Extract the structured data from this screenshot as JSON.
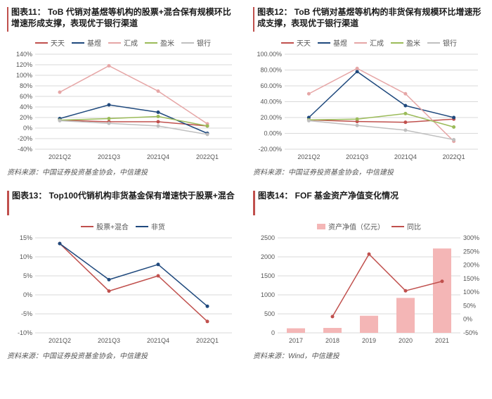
{
  "common": {
    "categories4": [
      "2021Q2",
      "2021Q3",
      "2021Q4",
      "2022Q1"
    ],
    "years5": [
      "2017",
      "2018",
      "2019",
      "2020",
      "2021"
    ],
    "series_colors": {
      "tiantian": "#c0504d",
      "jiyu": "#1f497d",
      "huicheng": "#e6a6a6",
      "yingmi": "#9bbb59",
      "yinhang": "#bfbfbf",
      "stockmix": "#c0504d",
      "nonmoney": "#1f497d",
      "nav_bar": "#f4b6b6",
      "yoy_line": "#c0504d"
    },
    "source1": "资料来源：中国证券投资基金协会，中信建投",
    "source2": "资料来源：Wind，中信建投",
    "legend_names": {
      "tiantian": "天天",
      "jiyu": "基煜",
      "huicheng": "汇成",
      "yingmi": "盈米",
      "yinhang": "银行",
      "stockmix": "股票+混合",
      "nonmoney": "非货",
      "nav": "资产净值（亿元）",
      "yoy": "同比"
    }
  },
  "chart11": {
    "title": "图表11： ToB 代销对基煜等机构的股票+混合保有规模环比增速形成支撑，表现优于银行渠道",
    "ymin": -40,
    "ymax": 140,
    "ystep": 20,
    "series": {
      "tiantian": [
        15,
        12,
        12,
        4
      ],
      "jiyu": [
        18,
        44,
        30,
        -10
      ],
      "huicheng": [
        68,
        118,
        70,
        8
      ],
      "yingmi": [
        15,
        18,
        22,
        4
      ],
      "yinhang": [
        14,
        9,
        4,
        -12
      ]
    }
  },
  "chart12": {
    "title": "图表12： ToB 代销对基煜等机构的非货保有规模环比增速形成支撑，表现优于银行渠道",
    "ymin": -20,
    "ymax": 100,
    "ystep": 20,
    "series": {
      "tiantian": [
        17,
        15,
        14,
        18
      ],
      "jiyu": [
        20,
        78,
        35,
        20
      ],
      "huicheng": [
        50,
        82,
        50,
        -10
      ],
      "yingmi": [
        17,
        18,
        25,
        8
      ],
      "yinhang": [
        16,
        10,
        4,
        -8
      ]
    }
  },
  "chart13": {
    "title": "图表13： Top100代销机构非货基金保有增速快于股票+混合",
    "ymin": -10,
    "ymax": 15,
    "ystep": 5,
    "series": {
      "stockmix": [
        13.5,
        1,
        5,
        -7
      ],
      "nonmoney": [
        13.5,
        4,
        8,
        -3
      ]
    }
  },
  "chart14": {
    "title": "图表14： FOF 基金资产净值变化情况",
    "y1min": 0,
    "y1max": 2500,
    "y1step": 500,
    "y2min": -50,
    "y2max": 300,
    "y2step": 50,
    "bars": [
      120,
      130,
      450,
      920,
      2220
    ],
    "line": [
      null,
      10,
      240,
      105,
      140
    ]
  }
}
